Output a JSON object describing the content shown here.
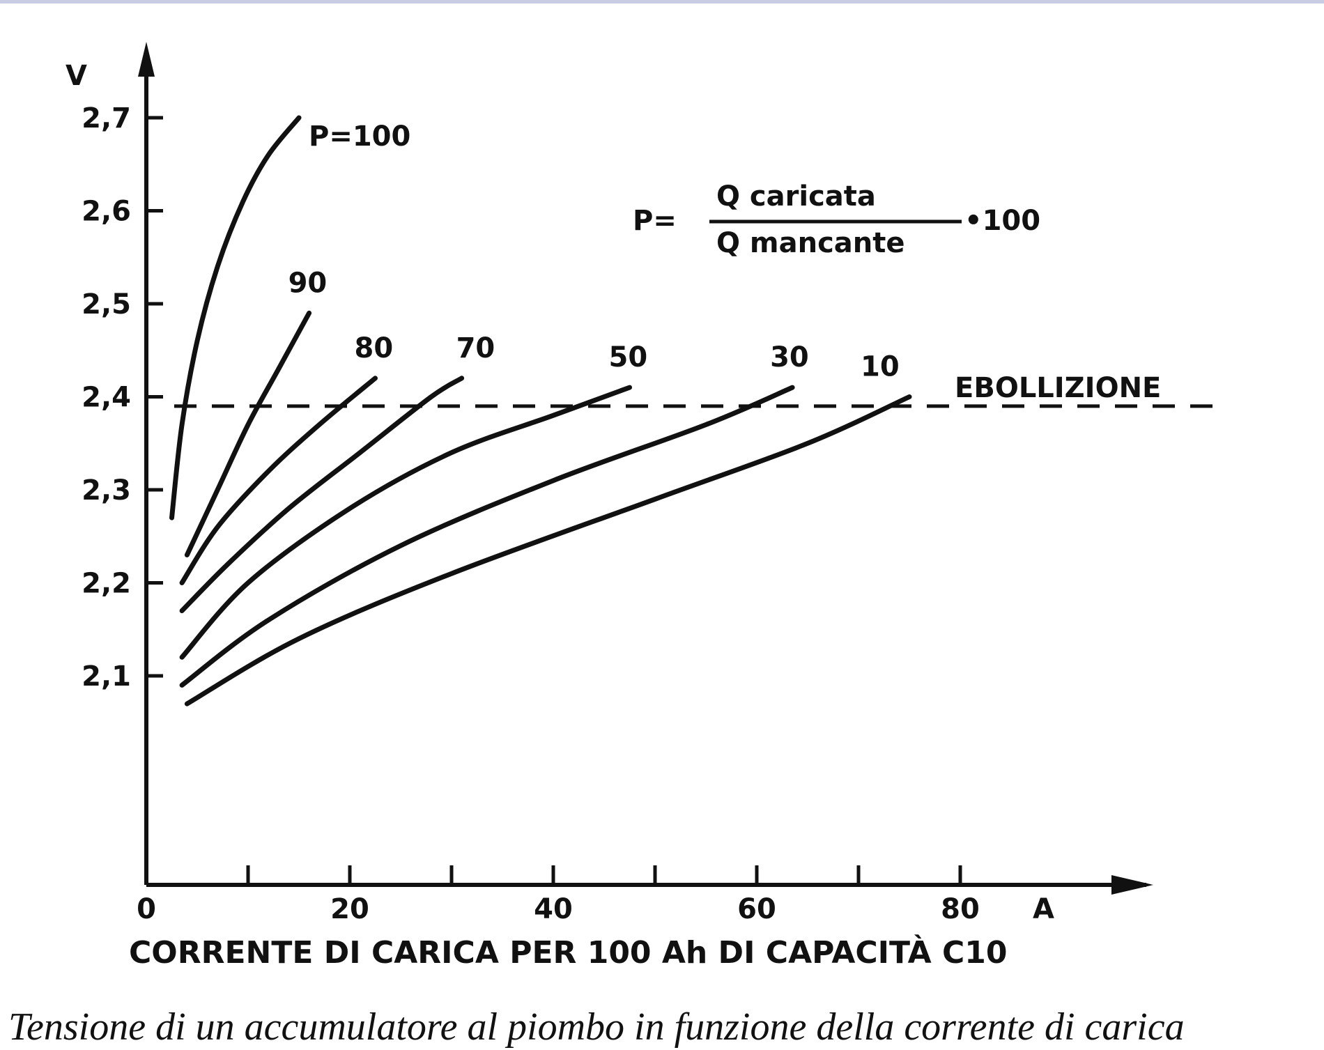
{
  "chart_data": {
    "type": "line",
    "ylabel": "V",
    "xlabel": "CORRENTE DI CARICA PER 100 Ah DI CAPACITÀ C10",
    "x_unit": "A",
    "xlim": [
      0,
      96
    ],
    "ylim": [
      2.0,
      2.78
    ],
    "x_ticks": [
      {
        "value": 0,
        "label": "0"
      },
      {
        "value": 10,
        "label": ""
      },
      {
        "value": 20,
        "label": "20"
      },
      {
        "value": 30,
        "label": ""
      },
      {
        "value": 40,
        "label": "40"
      },
      {
        "value": 50,
        "label": ""
      },
      {
        "value": 60,
        "label": "60"
      },
      {
        "value": 70,
        "label": ""
      },
      {
        "value": 80,
        "label": "80"
      }
    ],
    "y_ticks": [
      {
        "value": 2.1,
        "label": "2,1"
      },
      {
        "value": 2.2,
        "label": "2,2"
      },
      {
        "value": 2.3,
        "label": "2,3"
      },
      {
        "value": 2.4,
        "label": "2,4"
      },
      {
        "value": 2.5,
        "label": "2,5"
      },
      {
        "value": 2.6,
        "label": "2,6"
      },
      {
        "value": 2.7,
        "label": "2,7"
      }
    ],
    "reference_line": {
      "value": 2.39,
      "label": "EBOLLIZIONE"
    },
    "formula": {
      "lhs": "P=",
      "numerator": "Q caricata",
      "denominator": "Q mancante",
      "factor": "•100"
    },
    "series": [
      {
        "name": "P=100",
        "label": "P=100",
        "x": [
          2.5,
          3.5,
          5,
          7,
          9.5,
          12,
          15
        ],
        "y": [
          2.27,
          2.37,
          2.46,
          2.54,
          2.61,
          2.66,
          2.7
        ]
      },
      {
        "name": "90",
        "label": "90",
        "x": [
          4,
          7,
          10,
          13,
          16
        ],
        "y": [
          2.23,
          2.3,
          2.37,
          2.43,
          2.49
        ]
      },
      {
        "name": "80",
        "label": "80",
        "x": [
          3.5,
          7,
          12,
          17,
          22.5
        ],
        "y": [
          2.2,
          2.26,
          2.32,
          2.37,
          2.42
        ]
      },
      {
        "name": "70",
        "label": "70",
        "x": [
          3.5,
          8,
          14,
          21,
          28,
          31
        ],
        "y": [
          2.17,
          2.22,
          2.28,
          2.34,
          2.4,
          2.42
        ]
      },
      {
        "name": "50",
        "label": "50",
        "x": [
          3.5,
          10,
          20,
          30,
          40,
          47.5
        ],
        "y": [
          2.12,
          2.2,
          2.28,
          2.34,
          2.38,
          2.41
        ]
      },
      {
        "name": "30",
        "label": "30",
        "x": [
          3.5,
          12,
          25,
          40,
          55,
          63.5
        ],
        "y": [
          2.09,
          2.16,
          2.24,
          2.31,
          2.37,
          2.41
        ]
      },
      {
        "name": "10",
        "label": "10",
        "x": [
          4,
          15,
          30,
          50,
          65,
          75
        ],
        "y": [
          2.07,
          2.14,
          2.21,
          2.29,
          2.35,
          2.4
        ]
      }
    ]
  },
  "caption": "Tensione di un accumulatore al piombo in funzione della corrente di carica"
}
